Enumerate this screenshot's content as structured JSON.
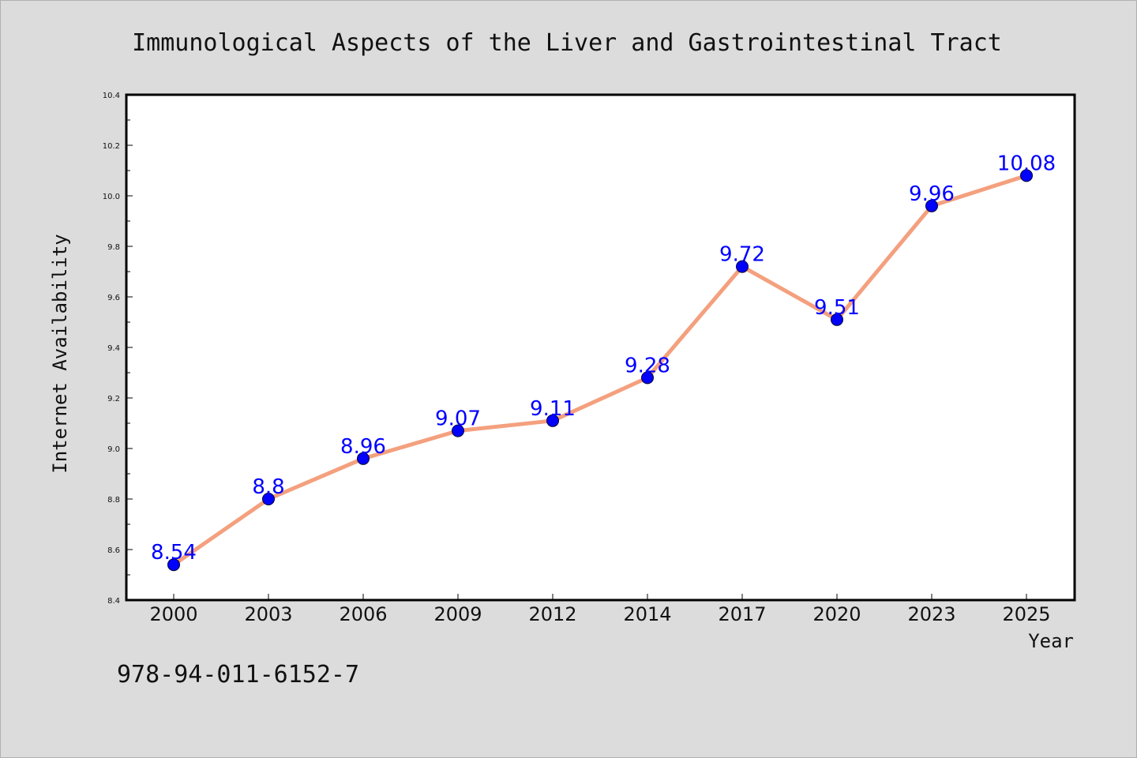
{
  "chart_data": {
    "type": "line",
    "title": "Immunological Aspects of the Liver and Gastrointestinal Tract",
    "xlabel": "Year",
    "ylabel": "Internet Availability",
    "categories": [
      "2000",
      "2003",
      "2006",
      "2009",
      "2012",
      "2014",
      "2017",
      "2020",
      "2023",
      "2025"
    ],
    "series": [
      {
        "values": [
          8.54,
          8.8,
          8.96,
          9.07,
          9.11,
          9.28,
          9.72,
          9.51,
          9.96,
          10.08
        ],
        "data_labels": [
          "8.54",
          "8.8",
          "8.96",
          "9.07",
          "9.11",
          "9.28",
          "9.72",
          "9.51",
          "9.96",
          "10.08"
        ],
        "line_color": "#f4a07e",
        "marker_color": "#0000ff"
      }
    ],
    "ylim": [
      8.4,
      10.4
    ],
    "yticks": [
      "8.4",
      "8.6",
      "8.8",
      "9.0",
      "9.2",
      "9.4",
      "9.6",
      "9.8",
      "10.0",
      "10.2",
      "10.4"
    ],
    "grid": false,
    "legend": "none"
  },
  "footer": {
    "isbn": "978-94-011-6152-7"
  },
  "colors": {
    "background": "#dcdcdc",
    "plot_background": "#ffffff",
    "label_color": "#0000ff"
  }
}
